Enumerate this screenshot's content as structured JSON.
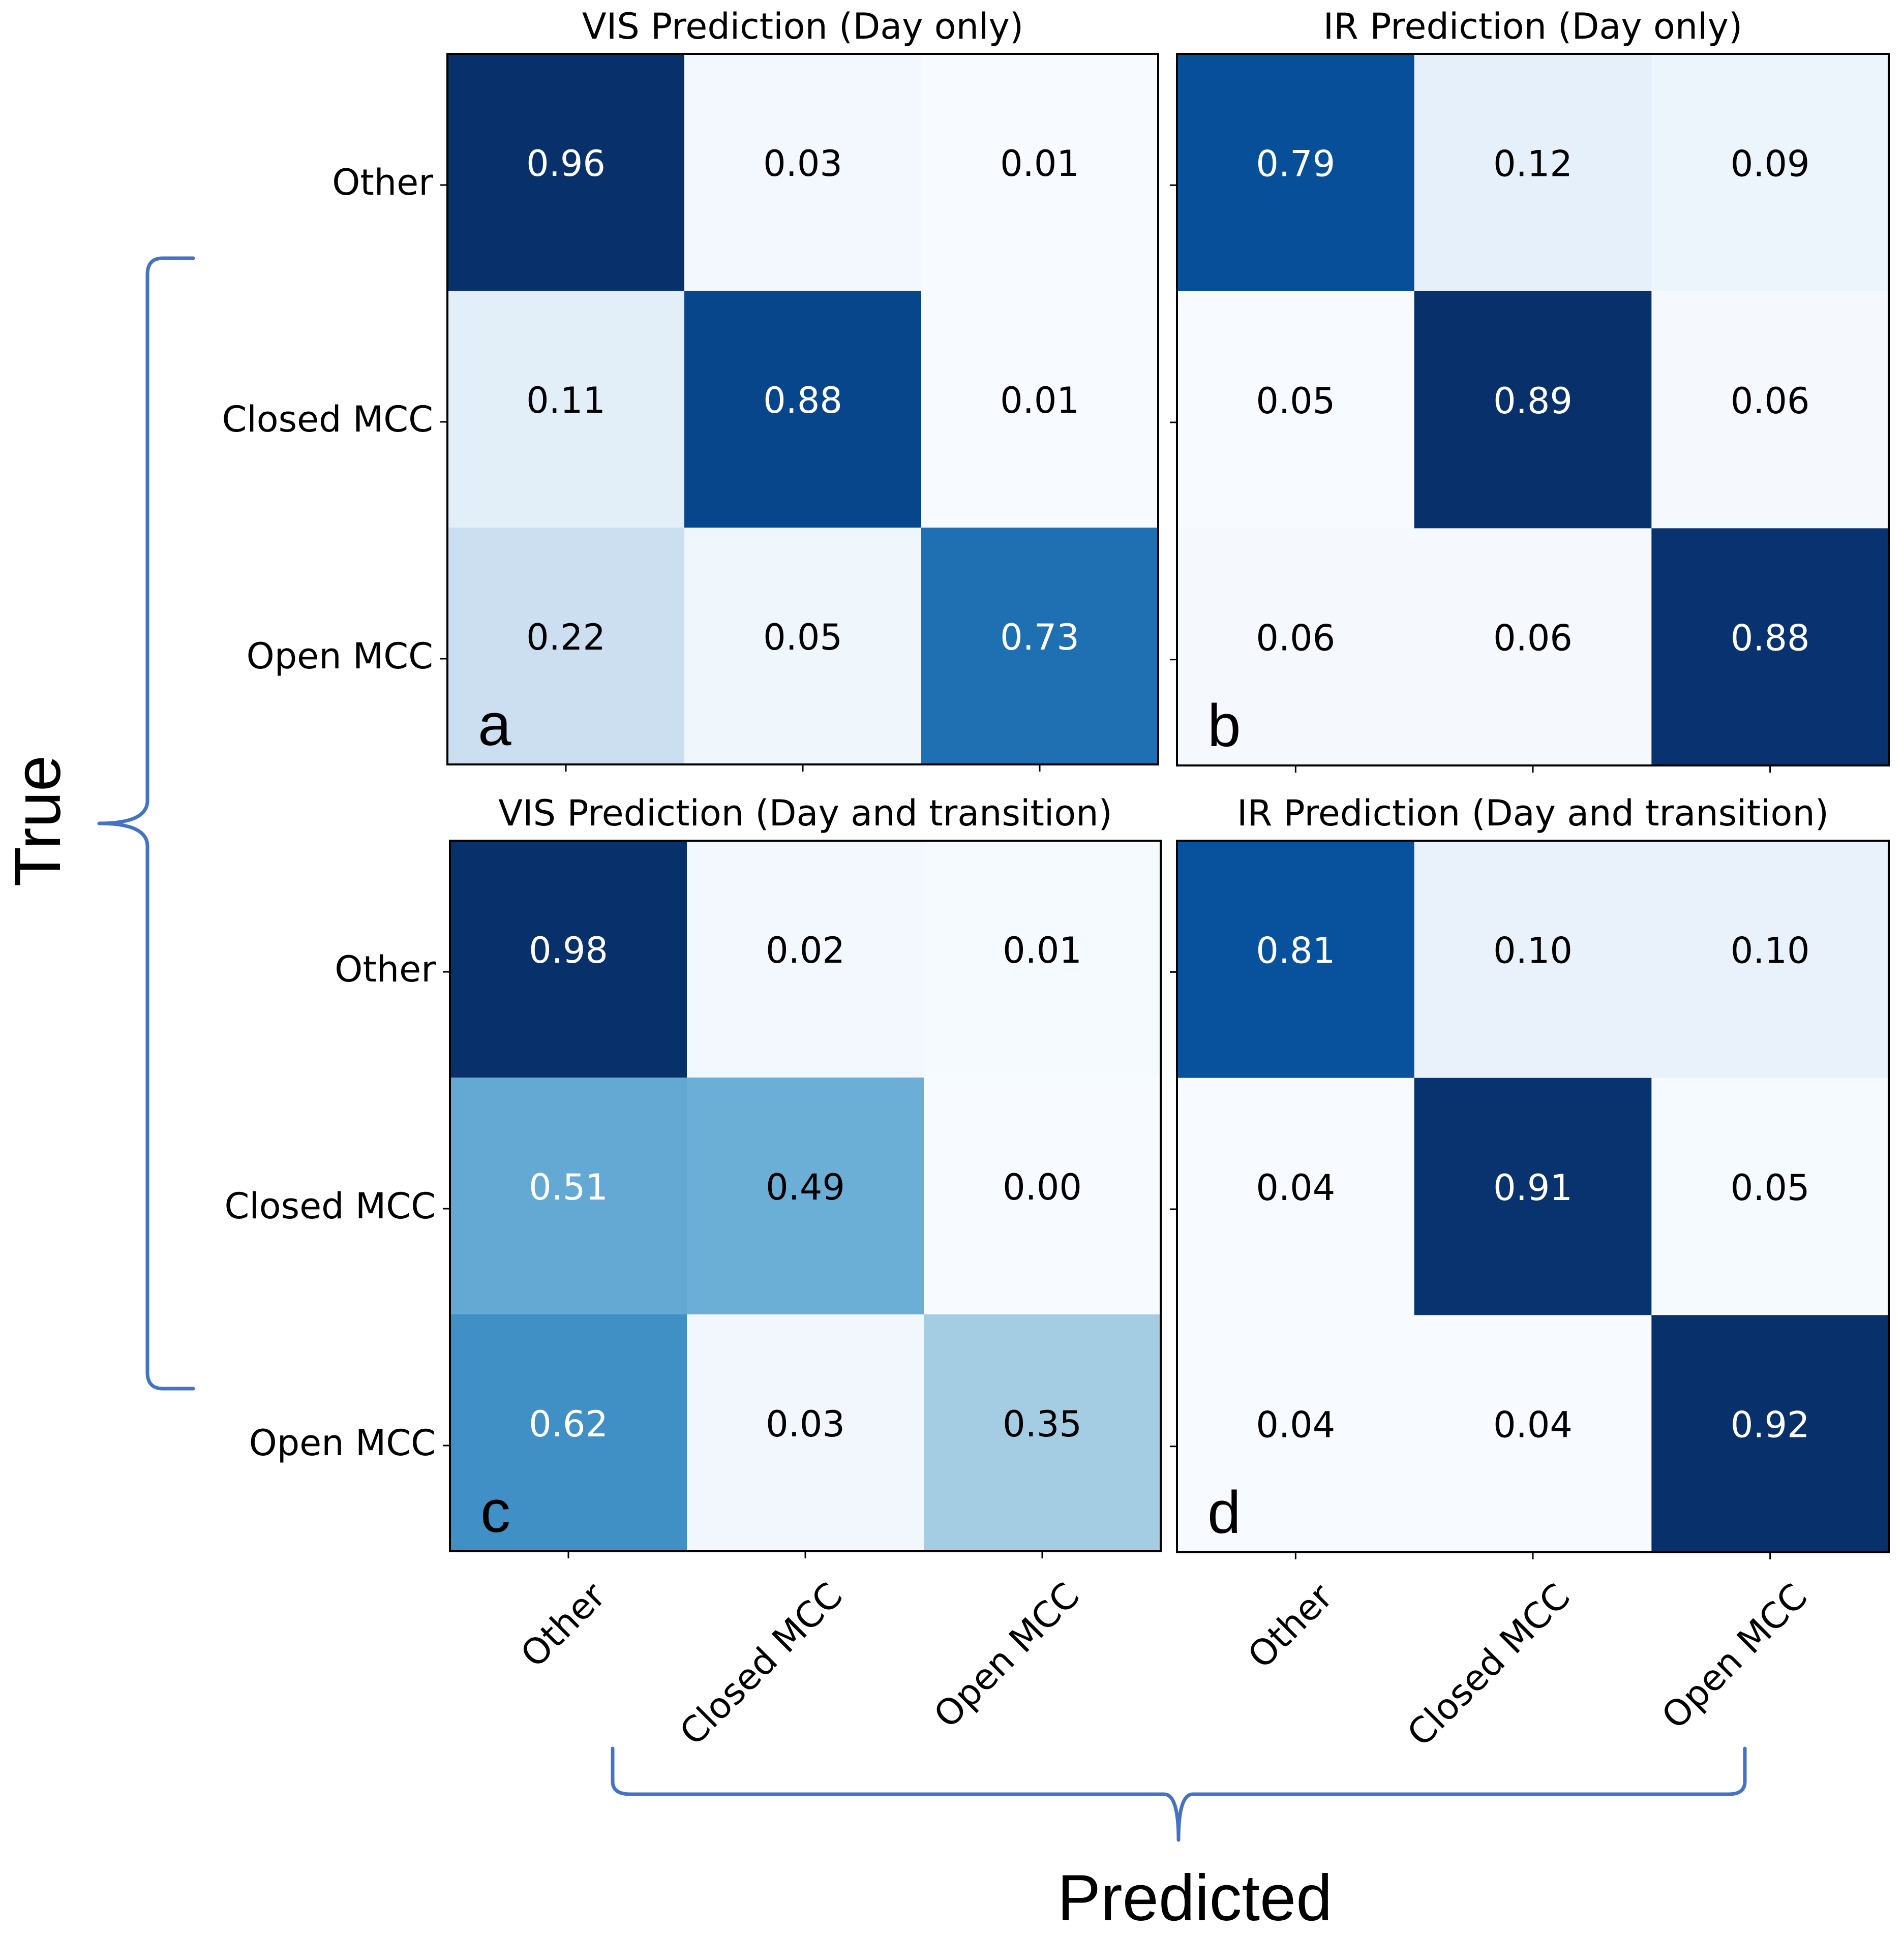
{
  "chart_data": [
    {
      "panel": "a",
      "type": "heatmap",
      "title": "VIS Prediction (Day only)",
      "rows": [
        "Other",
        "Closed MCC",
        "Open MCC"
      ],
      "columns": [
        "Other",
        "Closed MCC",
        "Open MCC"
      ],
      "values": [
        [
          0.96,
          0.03,
          0.01
        ],
        [
          0.11,
          0.88,
          0.01
        ],
        [
          0.22,
          0.05,
          0.73
        ]
      ],
      "labels": [
        [
          "0.96",
          "0.03",
          "0.01"
        ],
        [
          "0.11",
          "0.88",
          "0.01"
        ],
        [
          "0.22",
          "0.05",
          "0.73"
        ]
      ],
      "colormap": "Blues"
    },
    {
      "panel": "b",
      "type": "heatmap",
      "title": "IR Prediction (Day only)",
      "rows": [
        "Other",
        "Closed MCC",
        "Open MCC"
      ],
      "columns": [
        "Other",
        "Closed MCC",
        "Open MCC"
      ],
      "values": [
        [
          0.79,
          0.12,
          0.09
        ],
        [
          0.05,
          0.89,
          0.06
        ],
        [
          0.06,
          0.06,
          0.88
        ]
      ],
      "labels": [
        [
          "0.79",
          "0.12",
          "0.09"
        ],
        [
          "0.05",
          "0.89",
          "0.06"
        ],
        [
          "0.06",
          "0.06",
          "0.88"
        ]
      ],
      "colormap": "Blues"
    },
    {
      "panel": "c",
      "type": "heatmap",
      "title": "VIS Prediction (Day and transition)",
      "rows": [
        "Other",
        "Closed MCC",
        "Open MCC"
      ],
      "columns": [
        "Other",
        "Closed MCC",
        "Open MCC"
      ],
      "values": [
        [
          0.98,
          0.02,
          0.01
        ],
        [
          0.51,
          0.49,
          0.0
        ],
        [
          0.62,
          0.03,
          0.35
        ]
      ],
      "labels": [
        [
          "0.98",
          "0.02",
          "0.01"
        ],
        [
          "0.51",
          "0.49",
          "0.00"
        ],
        [
          "0.62",
          "0.03",
          "0.35"
        ]
      ],
      "colormap": "Blues"
    },
    {
      "panel": "d",
      "type": "heatmap",
      "title": "IR Prediction (Day and transition)",
      "rows": [
        "Other",
        "Closed MCC",
        "Open MCC"
      ],
      "columns": [
        "Other",
        "Closed MCC",
        "Open MCC"
      ],
      "values": [
        [
          0.81,
          0.1,
          0.1
        ],
        [
          0.04,
          0.91,
          0.05
        ],
        [
          0.04,
          0.04,
          0.92
        ]
      ],
      "labels": [
        [
          "0.81",
          "0.10",
          "0.10"
        ],
        [
          "0.04",
          "0.91",
          "0.05"
        ],
        [
          "0.04",
          "0.04",
          "0.92"
        ]
      ],
      "colormap": "Blues"
    }
  ],
  "axis_labels": {
    "y": "True",
    "x": "Predicted"
  },
  "colors": {
    "bracket": "#4472c4",
    "text_dark": "#000000",
    "text_light": "#ffffff"
  }
}
